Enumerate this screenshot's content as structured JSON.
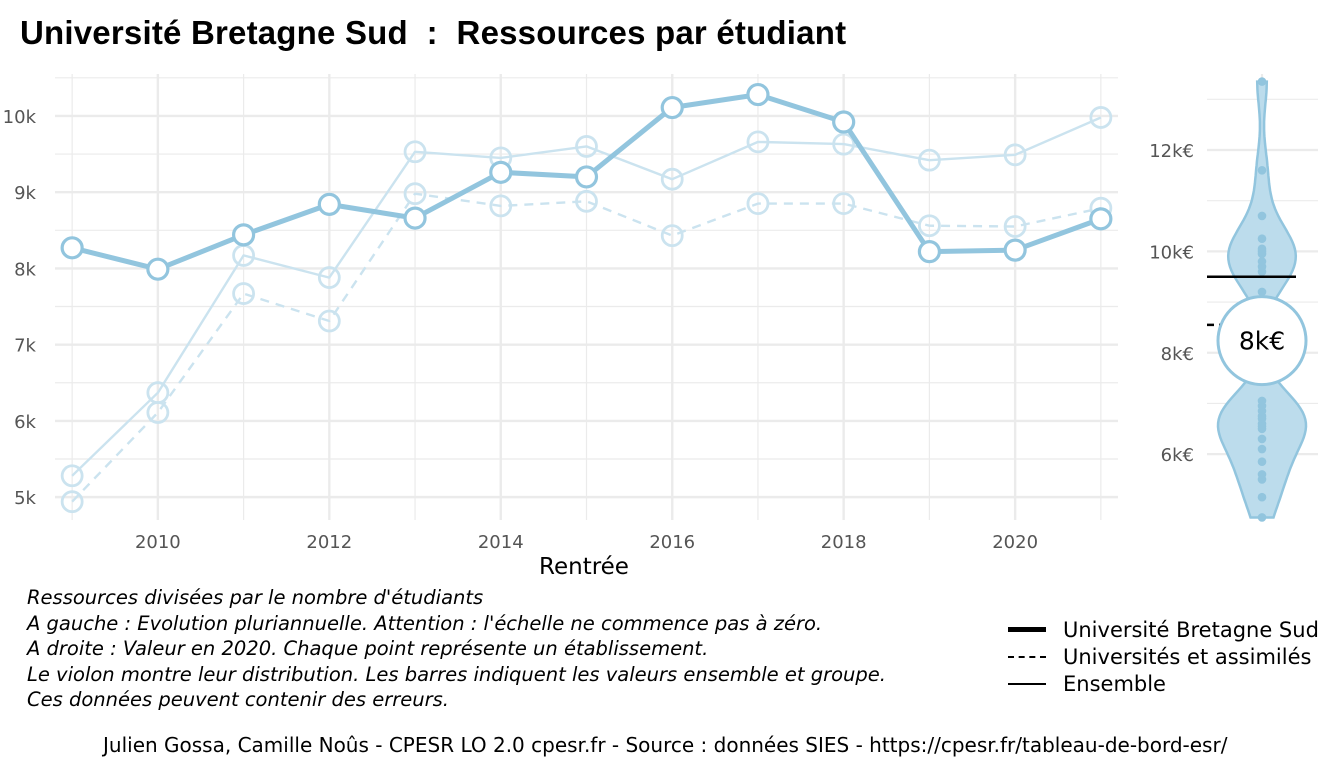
{
  "title": "Université Bretagne Sud  :  Ressources par étudiant",
  "notes": [
    "Ressources divisées par le nombre d'étudiants",
    "A gauche : Evolution pluriannuelle. Attention : l'échelle ne commence pas à zéro.",
    "A droite : Valeur en 2020. Chaque point représente un établissement.",
    "Le violon montre leur distribution. Les barres indiquent les valeurs ensemble et groupe.",
    "Ces données peuvent contenir des erreurs."
  ],
  "legend": [
    {
      "label": "Université Bretagne Sud",
      "style": "thick"
    },
    {
      "label": "Universités et assimilés",
      "style": "dashed"
    },
    {
      "label": "Ensemble",
      "style": "solid"
    }
  ],
  "caption": "Julien Gossa, Camille Noûs - CPESR LO 2.0 cpesr.fr - Source : données SIES - https://cpesr.fr/tableau-de-bord-esr/",
  "colors": {
    "main": "#92c5de",
    "light": "#cbe3ef",
    "violin_fill": "#bcdcec",
    "grid": "#ebebeb"
  },
  "chart_data": [
    {
      "type": "line",
      "xlabel": "Rentrée",
      "ylabel": "",
      "xlim": [
        2008.8,
        2021.2
      ],
      "ylim": [
        4700,
        10550
      ],
      "x_ticks": [
        2010,
        2012,
        2014,
        2016,
        2018,
        2020
      ],
      "x_tick_labels": [
        "2010",
        "2012",
        "2014",
        "2016",
        "2018",
        "2020"
      ],
      "y_ticks": [
        5000,
        6000,
        7000,
        8000,
        9000,
        10000
      ],
      "y_tick_labels": [
        "5k",
        "6k",
        "7k",
        "8k",
        "9k",
        "10k"
      ],
      "grid": true,
      "x": [
        2009,
        2010,
        2011,
        2012,
        2013,
        2014,
        2015,
        2016,
        2017,
        2018,
        2019,
        2020,
        2021
      ],
      "series": [
        {
          "name": "Université Bretagne Sud",
          "style": "thick",
          "values": [
            8270,
            7990,
            8440,
            8840,
            8660,
            9260,
            9200,
            10110,
            10280,
            9920,
            8220,
            8240,
            8650
          ]
        },
        {
          "name": "Universités et assimilés",
          "style": "dashed",
          "values": [
            4940,
            6110,
            7670,
            7310,
            8980,
            8820,
            8880,
            8430,
            8850,
            8850,
            8560,
            8550,
            8790
          ]
        },
        {
          "name": "Ensemble",
          "style": "solid",
          "values": [
            5280,
            6370,
            8170,
            7880,
            9530,
            9450,
            9600,
            9170,
            9660,
            9630,
            9420,
            9490,
            9980
          ]
        }
      ]
    },
    {
      "type": "violin",
      "year": 2020,
      "ylim": [
        4700,
        13500
      ],
      "y_ticks": [
        6000,
        8000,
        10000,
        12000
      ],
      "y_tick_labels": [
        "6k€",
        "8k€",
        "10k€",
        "12k€"
      ],
      "points": [
        4750,
        5150,
        5500,
        5600,
        5850,
        6100,
        6300,
        6500,
        6550,
        6600,
        6700,
        6750,
        6850,
        6950,
        7050,
        9200,
        9600,
        9700,
        9800,
        9950,
        10000,
        10050,
        10250,
        10700,
        11600,
        13350
      ],
      "ensemble_value": 9500,
      "group_value": 8550,
      "highlight_value": 8240,
      "highlight_label": "8k€"
    }
  ]
}
